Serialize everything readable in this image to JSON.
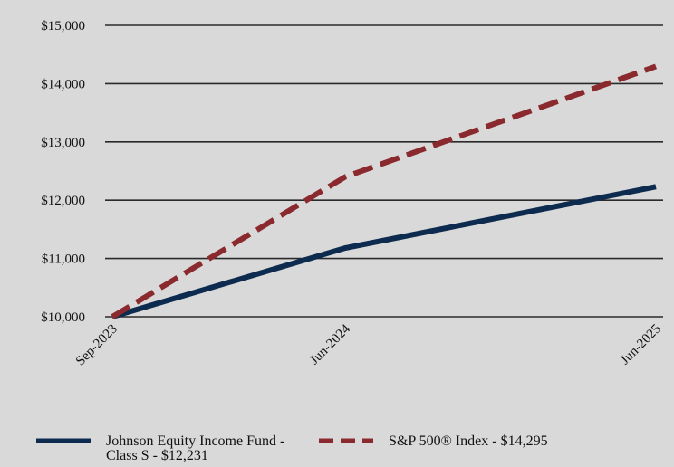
{
  "chart_data": {
    "type": "line",
    "title": "",
    "xlabel": "",
    "ylabel": "",
    "categories": [
      "Sep-2023",
      "Jun-2024",
      "Jun-2025"
    ],
    "x_tick_labels": [
      "Sep-2023",
      "Jun-2024",
      "Jun-2025"
    ],
    "y_tick_labels": [
      "$10,000",
      "$11,000",
      "$12,000",
      "$13,000",
      "$14,000",
      "$15,000"
    ],
    "y_ticks": [
      10000,
      11000,
      12000,
      13000,
      14000,
      15000
    ],
    "ylim": [
      10000,
      15000
    ],
    "grid": "horizontal",
    "legend_position": "bottom",
    "series": [
      {
        "name": "Johnson Equity Income Fund - Class S - $12,231",
        "values": [
          10000,
          11180,
          12231
        ],
        "color": "#0d2b4e",
        "style": "solid"
      },
      {
        "name": "S&P 500® Index - $14,295",
        "values": [
          10000,
          12400,
          14295
        ],
        "color": "#8b2a2e",
        "style": "dashed"
      }
    ]
  },
  "colors": {
    "background": "#d9d9d9",
    "gridline": "#2a2a2a"
  }
}
